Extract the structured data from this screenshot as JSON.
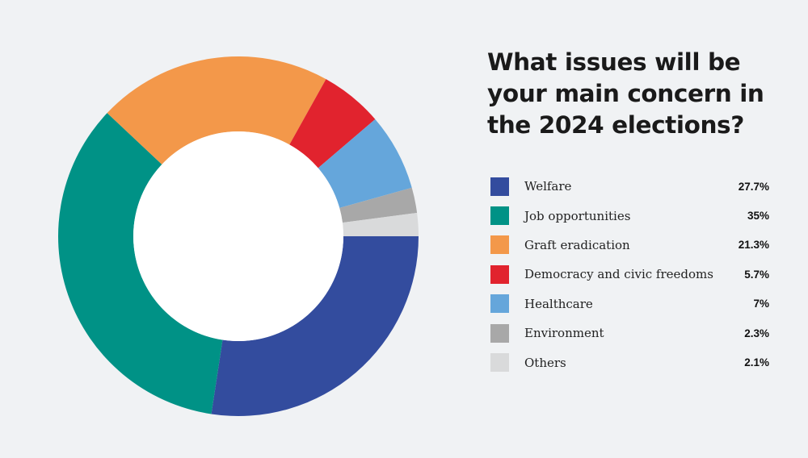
{
  "chart_data": {
    "type": "pie",
    "title": "What issues will be your main concern in the 2024 elections?",
    "categories": [
      "Welfare",
      "Job opportunities",
      "Graft eradication",
      "Democracy and civic freedoms",
      "Healthcare",
      "Environment",
      "Others"
    ],
    "values": [
      27.7,
      35,
      21.3,
      5.7,
      7,
      2.3,
      2.1
    ],
    "value_labels": [
      "27.7%",
      "35%",
      "21.3%",
      "5.7%",
      "7%",
      "2.3%",
      "2.1%"
    ],
    "colors": [
      "#334c9e",
      "#009286",
      "#f3984a",
      "#e1232e",
      "#65a6db",
      "#a8a8a8",
      "#d9dadb"
    ],
    "donut": true,
    "legend_position": "right"
  }
}
